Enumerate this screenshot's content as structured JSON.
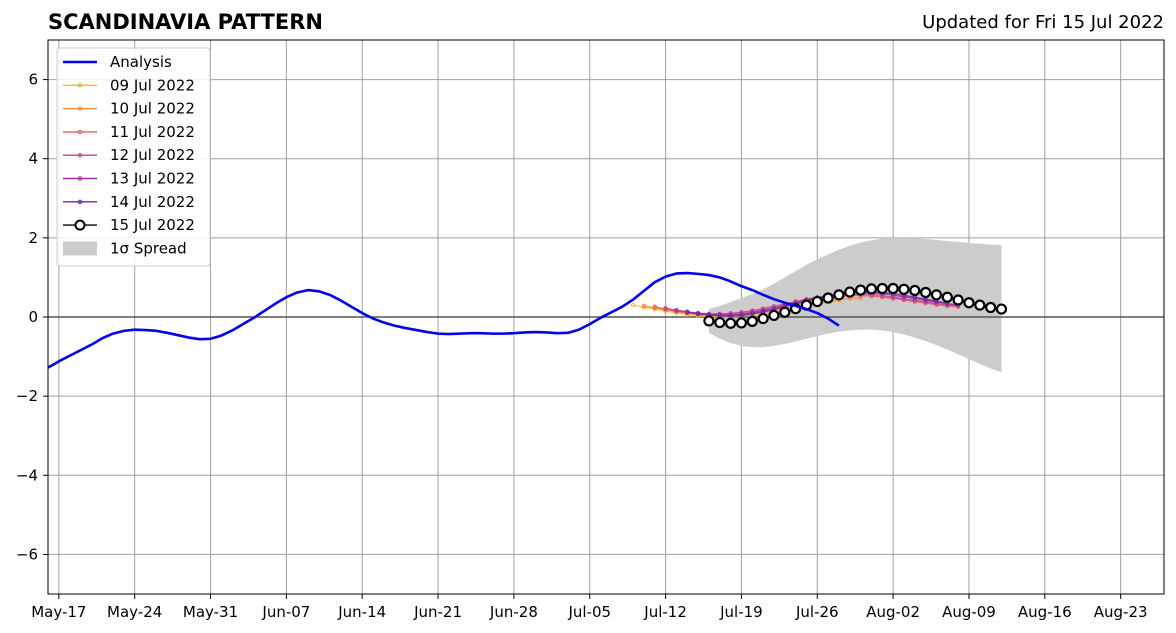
{
  "header": {
    "title": "SCANDINAVIA PATTERN",
    "updated": "Updated for Fri 15 Jul 2022"
  },
  "chart_data": {
    "type": "line",
    "title": "SCANDINAVIA PATTERN",
    "xlabel": "",
    "ylabel": "",
    "xlim": [
      "2022-05-16",
      "2022-08-27"
    ],
    "ylim": [
      -7,
      7
    ],
    "x_ticks": [
      "May-17",
      "May-24",
      "May-31",
      "Jun-07",
      "Jun-14",
      "Jun-21",
      "Jun-28",
      "Jul-05",
      "Jul-12",
      "Jul-19",
      "Jul-26",
      "Aug-02",
      "Aug-09",
      "Aug-16",
      "Aug-23"
    ],
    "x_tick_dates": [
      "2022-05-17",
      "2022-05-24",
      "2022-05-31",
      "2022-06-07",
      "2022-06-14",
      "2022-06-21",
      "2022-06-28",
      "2022-07-05",
      "2022-07-12",
      "2022-07-19",
      "2022-07-26",
      "2022-08-02",
      "2022-08-09",
      "2022-08-16",
      "2022-08-23"
    ],
    "y_ticks": [
      6,
      4,
      2,
      0,
      -2,
      -4,
      -6
    ],
    "y_tick_labels": [
      "6",
      "4",
      "2",
      "0",
      "−2",
      "−4",
      "−6"
    ],
    "grid": true,
    "legend_position": "top-left",
    "colors": {
      "analysis": "#0000ee",
      "spread": "#cccccc",
      "zero_line": "#555555",
      "grid": "#a0a0a0"
    },
    "analysis": {
      "name": "Analysis",
      "start": "2022-05-16",
      "values": [
        -1.28,
        -1.12,
        -0.98,
        -0.84,
        -0.7,
        -0.54,
        -0.42,
        -0.35,
        -0.32,
        -0.33,
        -0.35,
        -0.4,
        -0.46,
        -0.52,
        -0.56,
        -0.55,
        -0.47,
        -0.34,
        -0.18,
        -0.02,
        0.16,
        0.34,
        0.5,
        0.62,
        0.68,
        0.65,
        0.56,
        0.42,
        0.26,
        0.1,
        -0.04,
        -0.14,
        -0.22,
        -0.28,
        -0.33,
        -0.38,
        -0.42,
        -0.43,
        -0.42,
        -0.41,
        -0.41,
        -0.42,
        -0.42,
        -0.41,
        -0.39,
        -0.38,
        -0.39,
        -0.41,
        -0.4,
        -0.32,
        -0.18,
        -0.02,
        0.12,
        0.26,
        0.44,
        0.66,
        0.88,
        1.02,
        1.1,
        1.11,
        1.09,
        1.06,
        1.0,
        0.9,
        0.78,
        0.68,
        0.56,
        0.45,
        0.36,
        0.28,
        0.2,
        0.1,
        -0.04,
        -0.22
      ]
    },
    "forecasts": [
      {
        "name": "09 Jul 2022",
        "color": "#f7b733",
        "start": "2022-07-09",
        "values": [
          0.3,
          0.25,
          0.2,
          0.15,
          0.1,
          0.06,
          0.03,
          0.01,
          0.0,
          0.0,
          0.02,
          0.05,
          0.09,
          0.13,
          0.18,
          0.23,
          0.28,
          0.33,
          0.37,
          0.41
        ]
      },
      {
        "name": "10 Jul 2022",
        "color": "#f28e3c",
        "start": "2022-07-10",
        "values": [
          0.28,
          0.23,
          0.18,
          0.13,
          0.09,
          0.06,
          0.04,
          0.03,
          0.03,
          0.05,
          0.08,
          0.12,
          0.17,
          0.22,
          0.27,
          0.32,
          0.37,
          0.41,
          0.45,
          0.47,
          0.48
        ]
      },
      {
        "name": "11 Jul 2022",
        "color": "#e75a6b",
        "start": "2022-07-11",
        "values": [
          0.26,
          0.2,
          0.15,
          0.11,
          0.08,
          0.06,
          0.06,
          0.07,
          0.09,
          0.13,
          0.18,
          0.23,
          0.29,
          0.35,
          0.4,
          0.45,
          0.49,
          0.52,
          0.54,
          0.54,
          0.53,
          0.5,
          0.47,
          0.43,
          0.39,
          0.35,
          0.31,
          0.28,
          0.26
        ]
      },
      {
        "name": "12 Jul 2022",
        "color": "#c0428c",
        "start": "2022-07-12",
        "values": [
          0.22,
          0.17,
          0.13,
          0.1,
          0.08,
          0.08,
          0.09,
          0.12,
          0.16,
          0.21,
          0.27,
          0.33,
          0.39,
          0.45,
          0.5,
          0.54,
          0.57,
          0.58,
          0.58,
          0.57,
          0.54,
          0.5,
          0.46,
          0.42,
          0.38,
          0.34,
          0.31,
          0.29
        ]
      },
      {
        "name": "13 Jul 2022",
        "color": "#a02ea5",
        "start": "2022-07-13",
        "values": [
          0.17,
          0.13,
          0.09,
          0.06,
          0.05,
          0.05,
          0.07,
          0.11,
          0.16,
          0.22,
          0.29,
          0.36,
          0.43,
          0.49,
          0.54,
          0.58,
          0.61,
          0.62,
          0.61,
          0.59,
          0.55,
          0.51,
          0.47,
          0.42,
          0.38,
          0.34,
          0.3
        ]
      },
      {
        "name": "14 Jul 2022",
        "color": "#6a2aa8",
        "start": "2022-07-14",
        "values": [
          0.12,
          0.08,
          0.05,
          0.03,
          0.02,
          0.04,
          0.08,
          0.13,
          0.19,
          0.26,
          0.33,
          0.4,
          0.47,
          0.53,
          0.58,
          0.62,
          0.64,
          0.64,
          0.62,
          0.59,
          0.55,
          0.5,
          0.45,
          0.4,
          0.35
        ]
      },
      {
        "name": "15 Jul 2022",
        "color": "#000000",
        "start": "2022-07-16",
        "values": [
          -0.1,
          -0.14,
          -0.16,
          -0.15,
          -0.11,
          -0.04,
          0.04,
          0.12,
          0.21,
          0.3,
          0.39,
          0.48,
          0.56,
          0.63,
          0.68,
          0.71,
          0.72,
          0.72,
          0.7,
          0.67,
          0.62,
          0.56,
          0.5,
          0.43,
          0.36,
          0.3,
          0.24,
          0.2
        ]
      }
    ],
    "spread": {
      "name": "1σ Spread",
      "start": "2022-07-16",
      "end": "2022-08-12",
      "upper": [
        0.2,
        0.28,
        0.38,
        0.48,
        0.58,
        0.7,
        0.84,
        1.0,
        1.16,
        1.32,
        1.46,
        1.58,
        1.7,
        1.8,
        1.88,
        1.94,
        1.98,
        2.0,
        2.0,
        1.99,
        1.97,
        1.95,
        1.92,
        1.9,
        1.87,
        1.85,
        1.83,
        1.82
      ],
      "lower": [
        -0.4,
        -0.55,
        -0.66,
        -0.73,
        -0.76,
        -0.76,
        -0.73,
        -0.68,
        -0.62,
        -0.55,
        -0.48,
        -0.42,
        -0.37,
        -0.34,
        -0.32,
        -0.32,
        -0.34,
        -0.38,
        -0.44,
        -0.52,
        -0.61,
        -0.71,
        -0.82,
        -0.94,
        -1.06,
        -1.18,
        -1.3,
        -1.4
      ]
    }
  }
}
